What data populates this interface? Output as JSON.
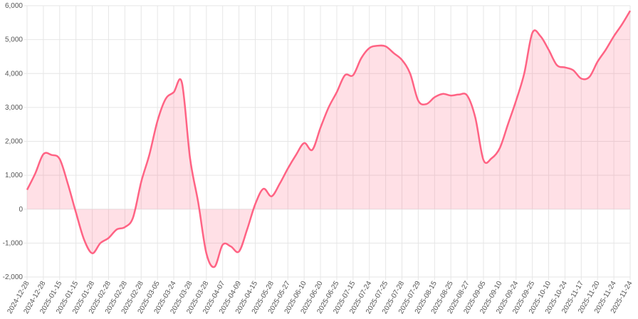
{
  "chart_data": {
    "type": "line",
    "categories": [
      "2024-12-28",
      null,
      "2024-12-28",
      null,
      "2025-01-15",
      null,
      "2025-01-15",
      null,
      "2025-01-28",
      null,
      "2025-02-28",
      null,
      "2025-02-28",
      null,
      "2025-02-28",
      null,
      "2025-03-05",
      null,
      "2025-03-24",
      null,
      "2025-03-28",
      null,
      "2025-03-28",
      null,
      "2025-04-07",
      null,
      "2025-04-09",
      null,
      "2025-04-15",
      null,
      "2025-05-28",
      null,
      "2025-05-27",
      null,
      "2025-06-10",
      null,
      "2025-06-20",
      null,
      "2025-06-25",
      null,
      "2025-07-15",
      null,
      "2025-07-24",
      null,
      "2025-07-25",
      null,
      "2025-07-28",
      null,
      "2025-07-29",
      null,
      "2025-08-15",
      null,
      "2025-08-25",
      null,
      "2025-08-27",
      null,
      "2025-09-05",
      null,
      "2025-09-10",
      null,
      "2025-09-24",
      null,
      "2025-09-25",
      null,
      "2025-10-10",
      null,
      "2025-10-24",
      null,
      "2025-11-17",
      null,
      "2025-11-20",
      null,
      "2025-11-24",
      null,
      "2025-11-24"
    ],
    "series": [
      {
        "color": "#ff6384",
        "fill": "rgba(255,99,132,0.2)",
        "values": [
          570,
          1050,
          1620,
          1600,
          1480,
          750,
          -100,
          -900,
          -1300,
          -1000,
          -850,
          -600,
          -530,
          -250,
          800,
          1600,
          2600,
          3250,
          3450,
          3730,
          1500,
          200,
          -1300,
          -1700,
          -1050,
          -1100,
          -1250,
          -600,
          150,
          600,
          380,
          750,
          1200,
          1600,
          1950,
          1750,
          2400,
          3000,
          3450,
          3950,
          3950,
          4450,
          4750,
          4820,
          4800,
          4600,
          4400,
          4000,
          3200,
          3100,
          3300,
          3400,
          3350,
          3380,
          3350,
          2700,
          1450,
          1500,
          1800,
          2500,
          3200,
          4000,
          5200,
          5100,
          4700,
          4250,
          4180,
          4100,
          3850,
          3900,
          4350,
          4700,
          5100,
          5450,
          5850
        ]
      }
    ],
    "ylim": [
      -2000,
      6000
    ],
    "yticks": [
      {
        "value": -2000,
        "label": "-2,000"
      },
      {
        "value": -1000,
        "label": "-1,000"
      },
      0,
      {
        "value": 1000,
        "label": "1,000"
      },
      {
        "value": 2000,
        "label": "2,000"
      },
      {
        "value": 3000,
        "label": "3,000"
      },
      {
        "value": 4000,
        "label": "4,000"
      },
      {
        "value": 5000,
        "label": "5,000"
      },
      {
        "value": 6000,
        "label": "6,000"
      }
    ],
    "grid": true
  }
}
